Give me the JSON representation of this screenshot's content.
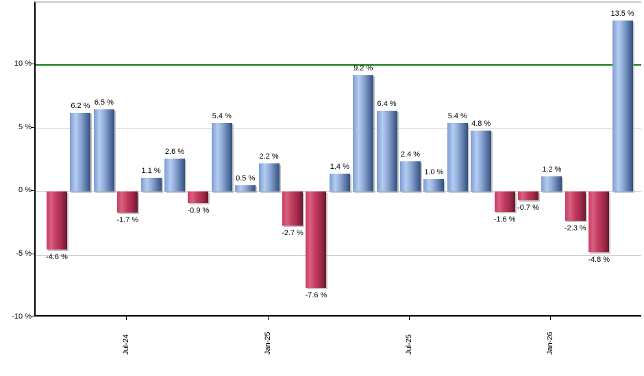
{
  "chart_data": {
    "type": "bar",
    "title": "",
    "xlabel": "",
    "ylabel": "",
    "unit": "%",
    "ylim": [
      -10,
      14.8
    ],
    "grid": true,
    "legend": null,
    "y_ticks": [
      {
        "label": "10 %",
        "value": 10
      },
      {
        "label": "5 %",
        "value": 5
      },
      {
        "label": "0 %",
        "value": 0
      },
      {
        "label": "-5 %",
        "value": -5
      },
      {
        "label": "-10 %",
        "value": -10
      }
    ],
    "x_ticks": [
      {
        "label": "Jul-24",
        "bar_index": 3
      },
      {
        "label": "Jan-25",
        "bar_index": 9
      },
      {
        "label": "Jul-25",
        "bar_index": 15
      },
      {
        "label": "Jan-26",
        "bar_index": 21
      }
    ],
    "reference_line": {
      "value": 10,
      "color": "#0b7d0b"
    },
    "bars": [
      {
        "value": -4.6,
        "label": "-4.6 %"
      },
      {
        "value": 6.2,
        "label": "6.2 %"
      },
      {
        "value": 6.5,
        "label": "6.5 %"
      },
      {
        "value": -1.7,
        "label": "-1.7 %"
      },
      {
        "value": 1.1,
        "label": "1.1 %"
      },
      {
        "value": 2.6,
        "label": "2.6 %"
      },
      {
        "value": -0.9,
        "label": "-0.9 %"
      },
      {
        "value": 5.4,
        "label": "5.4 %"
      },
      {
        "value": 0.5,
        "label": "0.5 %"
      },
      {
        "value": 2.2,
        "label": "2.2 %"
      },
      {
        "value": -2.7,
        "label": "-2.7 %"
      },
      {
        "value": -7.6,
        "label": "-7.6 %"
      },
      {
        "value": 1.4,
        "label": "1.4 %"
      },
      {
        "value": 9.2,
        "label": "9.2 %"
      },
      {
        "value": 6.4,
        "label": "6.4 %"
      },
      {
        "value": 2.4,
        "label": "2.4 %"
      },
      {
        "value": 1.0,
        "label": "1.0 %"
      },
      {
        "value": 5.4,
        "label": "5.4 %"
      },
      {
        "value": 4.8,
        "label": "4.8 %"
      },
      {
        "value": -1.6,
        "label": "-1.6 %"
      },
      {
        "value": -0.7,
        "label": "-0.7 %"
      },
      {
        "value": 1.2,
        "label": "1.2 %"
      },
      {
        "value": -2.3,
        "label": "-2.3 %"
      },
      {
        "value": -4.8,
        "label": "-4.8 %"
      },
      {
        "value": 13.5,
        "label": "13.5 %"
      }
    ],
    "colors": {
      "positive_bar_gradient": [
        "#7d9cd1",
        "#b3cdf2",
        "#8fa9d6",
        "#5f7cab",
        "#33507e"
      ],
      "negative_bar_gradient": [
        "#cc3a62",
        "#d8627f",
        "#c23a5e",
        "#a62c4c",
        "#6b1830"
      ],
      "gridline": "#c9c9c9",
      "axis": "#000000",
      "plot_top_border": "#c9c9c9",
      "bar_shadow": "#969696"
    }
  }
}
